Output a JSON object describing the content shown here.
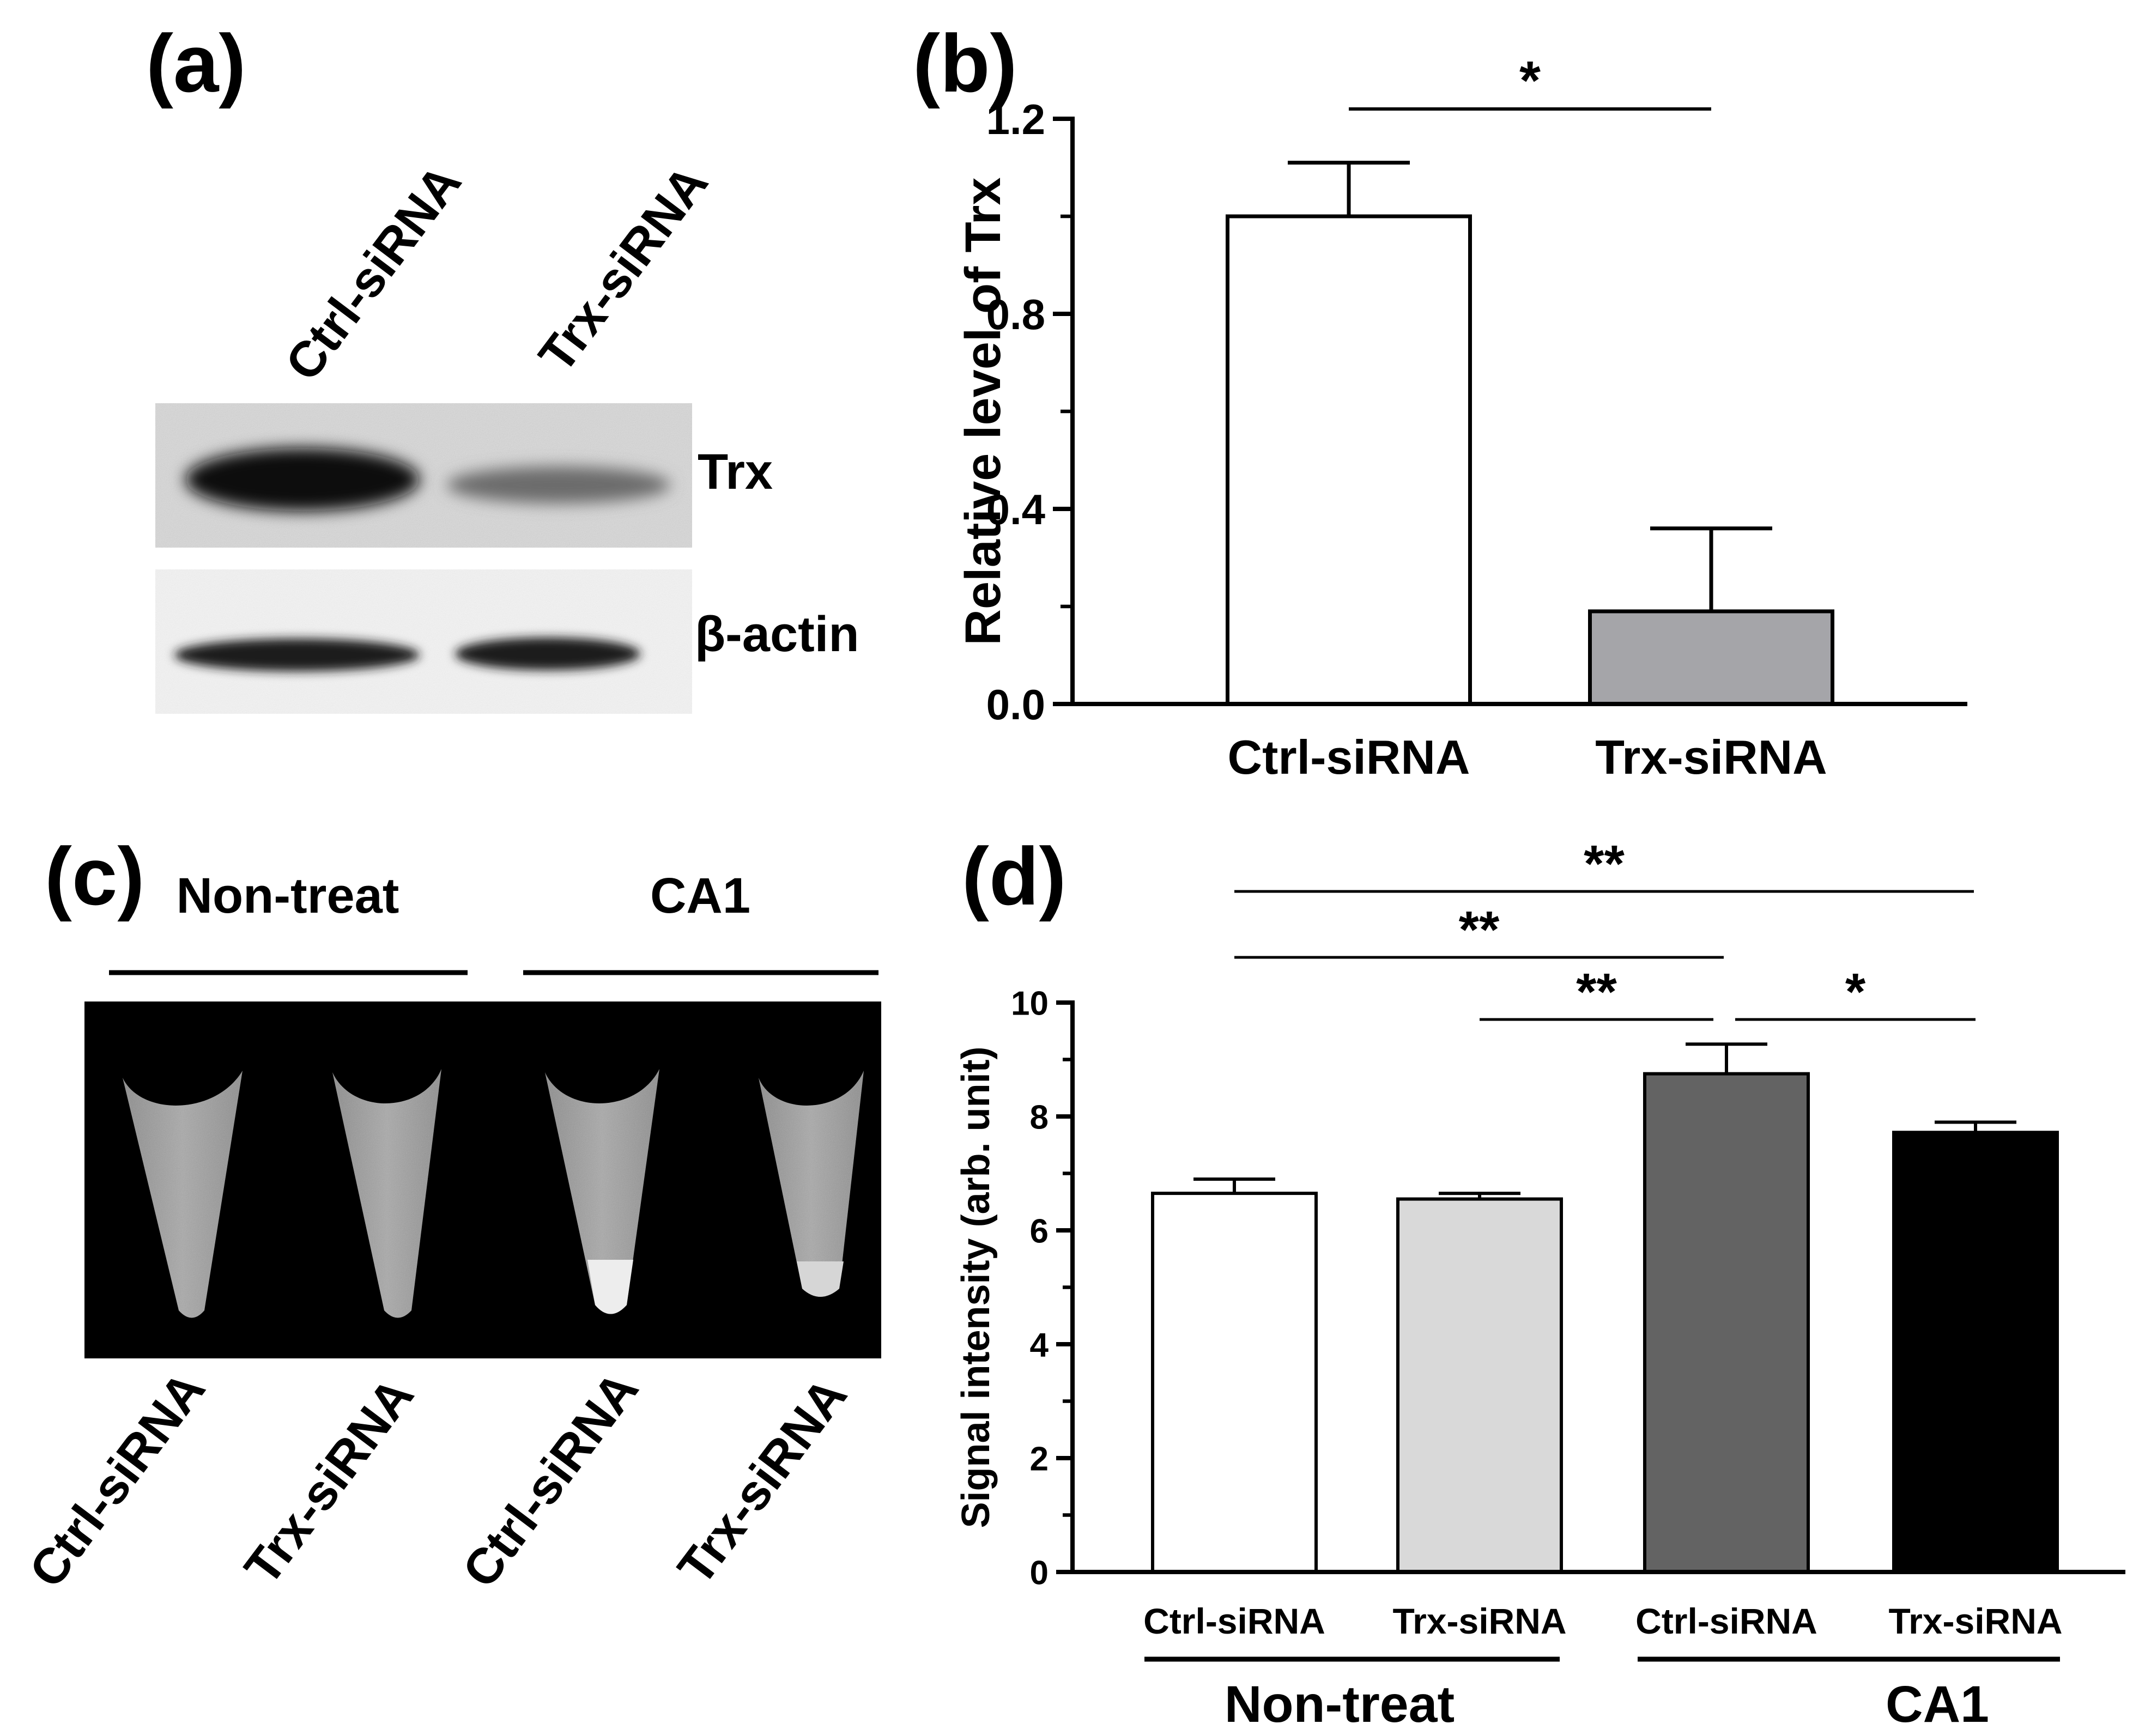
{
  "panels": {
    "a": {
      "label": "(a)",
      "lane_labels": [
        "Ctrl-siRNA",
        "Trx-siRNA"
      ],
      "band_labels": [
        "Trx",
        "β-actin"
      ]
    },
    "b": {
      "label": "(b)"
    },
    "c": {
      "label": "(c)",
      "group_labels": [
        "Non-treat",
        "CA1"
      ],
      "tube_labels": [
        "Ctrl-siRNA",
        "Trx-siRNA",
        "Ctrl-siRNA",
        "Trx-siRNA"
      ]
    },
    "d": {
      "label": "(d)",
      "group_labels": [
        "Non-treat",
        "CA1"
      ]
    }
  },
  "chart_data": [
    {
      "panel": "b",
      "type": "bar",
      "categories": [
        "Ctrl-siRNA",
        "Trx-siRNA"
      ],
      "values": [
        1.0,
        0.19
      ],
      "errors": [
        0.11,
        0.17
      ],
      "colors": [
        "#ffffff",
        "#a5a5a9"
      ],
      "ylabel": "Relative level of Trx",
      "ylim": [
        0,
        1.2
      ],
      "yticks": [
        "0.0",
        "0.4",
        "0.8",
        "1.2"
      ],
      "significance": [
        {
          "from": 0,
          "to": 1,
          "label": "*"
        }
      ]
    },
    {
      "panel": "d",
      "type": "bar",
      "categories": [
        "Ctrl-siRNA",
        "Trx-siRNA",
        "Ctrl-siRNA",
        "Trx-siRNA"
      ],
      "groups": [
        {
          "name": "Non-treat",
          "members": [
            0,
            1
          ]
        },
        {
          "name": "CA1",
          "members": [
            2,
            3
          ]
        }
      ],
      "values": [
        6.65,
        6.55,
        8.75,
        7.72
      ],
      "errors": [
        0.25,
        0.1,
        0.52,
        0.18
      ],
      "colors": [
        "#ffffff",
        "#d9d9d9",
        "#636363",
        "#000000"
      ],
      "ylabel": "Signal intensity (arb. unit)",
      "ylim": [
        0,
        10
      ],
      "yticks": [
        "0",
        "2",
        "4",
        "6",
        "8",
        "10"
      ],
      "significance": [
        {
          "from": 0,
          "to": 3,
          "label": "**"
        },
        {
          "from": 0,
          "to": 2,
          "label": "**"
        },
        {
          "from": 1,
          "to": 2,
          "label": "**"
        },
        {
          "from": 2,
          "to": 3,
          "label": "*"
        }
      ]
    }
  ]
}
